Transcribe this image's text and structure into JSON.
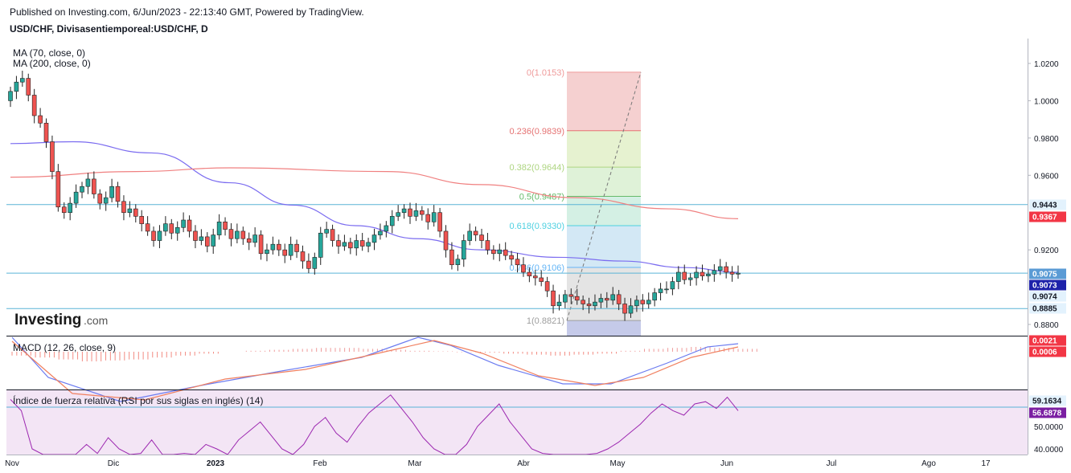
{
  "header": {
    "published": "Published on Investing.com, 6/Jun/2023 - 22:13:40 GMT, Powered by TradingView.",
    "symbol": "USD/CHF, Divisasentiemporeal:USD/CHF, D"
  },
  "indicators": {
    "ma70": "MA (70, close, 0)",
    "ma200": "MA (200, close, 0)",
    "macd": "MACD (12, 26, close, 9)",
    "rsi": "Índice de fuerza relativa (RSI por sus siglas en inglés) (14)"
  },
  "logo": {
    "main": "Investing",
    "suffix": ".com"
  },
  "colors": {
    "up": "#26a69a",
    "down": "#ef5350",
    "ma70": "#7b6cf0",
    "ma200": "#f08080",
    "hline": "#5ab4d6",
    "rsi_bg": "#f3e5f5",
    "rsi_line": "#9c27b0",
    "macd_line": "#6b7bf0",
    "signal_line": "#f08060"
  },
  "chart_data": [
    {
      "type": "candlestick",
      "title": "USD/CHF, Divisasentiemporeal:USD/CHF, D",
      "x_tick_labels": [
        "Nov",
        "Dic",
        "2023",
        "Feb",
        "Mar",
        "Abr",
        "May",
        "Jun",
        "Jul",
        "Ago",
        "17"
      ],
      "y_tick_labels": [
        "1.0200",
        "1.0000",
        "0.9800",
        "0.9600",
        "0.9200",
        "0.8800"
      ],
      "ylim": [
        0.875,
        1.025
      ],
      "series": [
        {
          "name": "USD/CHF",
          "close": [
            1.005,
            1.01,
            1.012,
            1.003,
            0.992,
            0.988,
            0.978,
            0.962,
            0.943,
            0.94,
            0.945,
            0.951,
            0.954,
            0.958,
            0.95,
            0.945,
            0.948,
            0.954,
            0.946,
            0.94,
            0.942,
            0.938,
            0.934,
            0.93,
            0.925,
            0.93,
            0.934,
            0.929,
            0.932,
            0.936,
            0.93,
            0.925,
            0.927,
            0.922,
            0.928,
            0.935,
            0.931,
            0.926,
            0.93,
            0.926,
            0.924,
            0.928,
            0.918,
            0.92,
            0.923,
            0.92,
            0.917,
            0.923,
            0.919,
            0.914,
            0.91,
            0.916,
            0.929,
            0.931,
            0.925,
            0.922,
            0.924,
            0.921,
            0.925,
            0.922,
            0.924,
            0.928,
            0.93,
            0.933,
            0.938,
            0.94,
            0.942,
            0.938,
            0.941,
            0.939,
            0.935,
            0.94,
            0.93,
            0.92,
            0.912,
            0.915,
            0.925,
            0.93,
            0.928,
            0.925,
            0.92,
            0.918,
            0.92,
            0.917,
            0.915,
            0.912,
            0.908,
            0.906,
            0.905,
            0.903,
            0.898,
            0.89,
            0.892,
            0.896,
            0.895,
            0.893,
            0.891,
            0.89,
            0.892,
            0.894,
            0.893,
            0.896,
            0.891,
            0.886,
            0.89,
            0.893,
            0.891,
            0.893,
            0.897,
            0.899,
            0.899,
            0.903,
            0.908,
            0.904,
            0.905,
            0.908,
            0.906,
            0.907,
            0.909,
            0.911,
            0.908,
            0.907,
            0.9075
          ]
        },
        {
          "name": "MA (70, close, 0)",
          "values_at_points": [
            [
              0,
              0.977
            ],
            [
              25,
              0.978
            ],
            [
              50,
              0.968
            ],
            [
              75,
              0.946
            ],
            [
              100,
              0.931
            ],
            [
              125,
              0.918
            ],
            [
              150,
              0.915
            ],
            [
              175,
              0.912
            ],
            [
              220,
              0.908
            ]
          ]
        },
        {
          "name": "MA (200, close, 0)",
          "values_at_points": [
            [
              0,
              0.959
            ],
            [
              50,
              0.964
            ],
            [
              100,
              0.964
            ],
            [
              150,
              0.957
            ],
            [
              200,
              0.947
            ],
            [
              240,
              0.939
            ],
            [
              260,
              0.9367
            ]
          ]
        }
      ],
      "fibonacci": {
        "levels": [
          "0(1.0153)",
          "0.236(0.9839)",
          "0.382(0.9644)",
          "0.5(0.9487)",
          "0.618(0.9330)",
          "0.786(0.9106)",
          "1(0.8821)"
        ],
        "values": [
          1.0153,
          0.9839,
          0.9644,
          0.9487,
          0.933,
          0.9106,
          0.8821
        ],
        "colors": [
          "#ef9a9a",
          "#e57373",
          "#aed581",
          "#66bb6a",
          "#4dd0e1",
          "#64b5f6",
          "#9e9e9e"
        ]
      },
      "horizontal_lines": [
        0.9443,
        0.9075,
        0.8885
      ],
      "price_badges": [
        {
          "text": "0.9443",
          "value": 0.9443,
          "bg": "#e3f2fd",
          "fg": "#131722"
        },
        {
          "text": "0.9367",
          "value": 0.9367,
          "bg": "#f23645",
          "fg": "#ffffff"
        },
        {
          "text": "0.9075",
          "value": 0.9075,
          "bg": "#5b9bd5",
          "fg": "#ffffff"
        },
        {
          "text": "0.9073",
          "value": 0.9073,
          "bg": "#1e22aa",
          "fg": "#ffffff"
        },
        {
          "text": "0.9074",
          "value": 0.9074,
          "bg": "#e3f2fd",
          "fg": "#131722"
        },
        {
          "text": "0.8885",
          "value": 0.8885,
          "bg": "#e3f2fd",
          "fg": "#131722"
        }
      ]
    },
    {
      "type": "bar",
      "title": "MACD (12, 26, close, 9)",
      "series": [
        {
          "name": "Histogram",
          "values": [
            -0.4,
            -0.6,
            -0.8,
            -1,
            -0.9,
            -0.8,
            -0.6,
            -0.4,
            -0.2,
            0,
            0.1,
            0.2,
            0.3,
            0.4,
            0.4,
            0.3,
            0.2,
            0.1,
            0.05,
            -0.05,
            -0.1,
            -0.2,
            -0.3,
            -0.4,
            -0.3,
            -0.2,
            0.1,
            0.3,
            0.4,
            0.5,
            0.4,
            0.3
          ]
        }
      ],
      "badges": [
        {
          "text": "0.0021",
          "bg": "#f23645",
          "fg": "#ffffff"
        },
        {
          "text": "0.0006",
          "bg": "#f23645",
          "fg": "#ffffff"
        }
      ]
    },
    {
      "type": "line",
      "title": "Índice de fuerza relativa (RSI por sus siglas en inglés) (14)",
      "y_tick_labels": [
        "50.0000",
        "40.0000"
      ],
      "badges": [
        {
          "text": "59.1634",
          "bg": "#e3f2fd",
          "fg": "#131722"
        },
        {
          "text": "56.6878",
          "bg": "#7b1fa2",
          "fg": "#ffffff"
        }
      ]
    }
  ]
}
